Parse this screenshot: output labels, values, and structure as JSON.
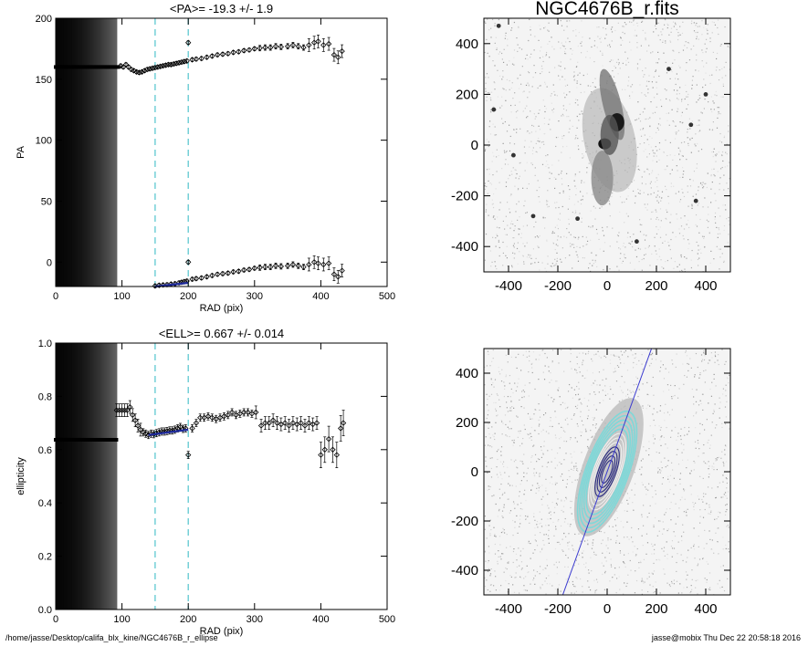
{
  "footer": {
    "path": "/home/jasse/Desktop/califa_blx_kine/NGC4676B_r_ellipse",
    "user_stamp": "jasse@mobix  Thu Dec 22 20:58:18 2016"
  },
  "colors": {
    "guide_lines": "#5ec8d0",
    "model_line": "#1e2a9c",
    "contours_inner": "#2a2a80",
    "contours_outer": "#7fd8d8",
    "pa_line": "#3a3ad0"
  },
  "chart_data": [
    {
      "type": "scatter",
      "title": "<PA>= -19.3 +/-   1.9",
      "xlabel": "RAD (pix)",
      "ylabel": "PA",
      "xlim": [
        0,
        500
      ],
      "ylim": [
        -20,
        200
      ],
      "x_ticks": [
        0,
        100,
        200,
        300,
        400,
        500
      ],
      "y_ticks": [
        0,
        50,
        100,
        150,
        200
      ],
      "grid": false,
      "shaded_region": [
        0,
        92
      ],
      "vertical_lines": [
        150,
        200
      ],
      "constant_start": {
        "x": [
          0,
          95
        ],
        "y": 160
      },
      "upper_points": [
        [
          98,
          161
        ],
        [
          102,
          160
        ],
        [
          106,
          162
        ],
        [
          110,
          160
        ],
        [
          114,
          158
        ],
        [
          118,
          157
        ],
        [
          122,
          156
        ],
        [
          126,
          155.5
        ],
        [
          130,
          156
        ],
        [
          134,
          157
        ],
        [
          138,
          158
        ],
        [
          142,
          158.5
        ],
        [
          146,
          159
        ],
        [
          150,
          159.5
        ],
        [
          154,
          160
        ],
        [
          158,
          160.5
        ],
        [
          162,
          161
        ],
        [
          166,
          161.5
        ],
        [
          170,
          162
        ],
        [
          174,
          162
        ],
        [
          178,
          162.5
        ],
        [
          182,
          163
        ],
        [
          186,
          163.5
        ],
        [
          190,
          164
        ],
        [
          194,
          164.5
        ],
        [
          198,
          165
        ],
        [
          200,
          180
        ],
        [
          206,
          166
        ],
        [
          212,
          166.5
        ],
        [
          220,
          167
        ],
        [
          228,
          168
        ],
        [
          236,
          169
        ],
        [
          244,
          170
        ],
        [
          252,
          170.5
        ],
        [
          260,
          171
        ],
        [
          268,
          172
        ],
        [
          276,
          172.5
        ],
        [
          284,
          173.5
        ],
        [
          292,
          174
        ],
        [
          300,
          175
        ],
        [
          308,
          175.5
        ],
        [
          316,
          176
        ],
        [
          324,
          176
        ],
        [
          332,
          177
        ],
        [
          340,
          176.5
        ],
        [
          350,
          177
        ],
        [
          358,
          178
        ],
        [
          366,
          177
        ],
        [
          374,
          176
        ],
        [
          382,
          178
        ],
        [
          390,
          180
        ],
        [
          396,
          181
        ],
        [
          404,
          178
        ],
        [
          412,
          179
        ],
        [
          420,
          170
        ],
        [
          426,
          168
        ],
        [
          432,
          173
        ]
      ],
      "lower_points": [
        [
          150,
          -19.5
        ],
        [
          156,
          -19
        ],
        [
          162,
          -18.7
        ],
        [
          168,
          -18.5
        ],
        [
          174,
          -18
        ],
        [
          180,
          -17.7
        ],
        [
          186,
          -17
        ],
        [
          190,
          -16.5
        ],
        [
          194,
          -16
        ],
        [
          198,
          -15.5
        ],
        [
          200,
          0
        ],
        [
          206,
          -14
        ],
        [
          212,
          -13.5
        ],
        [
          220,
          -13
        ],
        [
          228,
          -12
        ],
        [
          236,
          -11
        ],
        [
          244,
          -10
        ],
        [
          252,
          -9.5
        ],
        [
          260,
          -9
        ],
        [
          268,
          -8
        ],
        [
          276,
          -7.5
        ],
        [
          284,
          -6.5
        ],
        [
          292,
          -6
        ],
        [
          300,
          -5
        ],
        [
          308,
          -4.5
        ],
        [
          316,
          -4
        ],
        [
          324,
          -4
        ],
        [
          332,
          -3
        ],
        [
          340,
          -3.5
        ],
        [
          350,
          -3
        ],
        [
          358,
          -2
        ],
        [
          366,
          -3
        ],
        [
          374,
          -4
        ],
        [
          382,
          -2
        ],
        [
          390,
          0
        ],
        [
          396,
          -1
        ],
        [
          404,
          -2
        ],
        [
          412,
          -1
        ],
        [
          420,
          -10
        ],
        [
          426,
          -12
        ],
        [
          432,
          -7
        ]
      ],
      "fit_line": {
        "x": [
          150,
          200
        ],
        "y": [
          -20,
          -17
        ]
      }
    },
    {
      "type": "scatter",
      "title": "<ELL>= 0.667 +/-  0.014",
      "xlabel": "RAD (pix)",
      "ylabel": "ellipticity",
      "xlim": [
        0,
        500
      ],
      "ylim": [
        0.0,
        1.0
      ],
      "x_ticks": [
        0,
        100,
        200,
        300,
        400,
        500
      ],
      "y_ticks": [
        0.0,
        0.2,
        0.4,
        0.6,
        0.8,
        1.0
      ],
      "y_tick_labels": [
        "0.0",
        "0.2",
        "0.4",
        "0.6",
        "0.8",
        "1.0"
      ],
      "grid": false,
      "shaded_region": [
        0,
        92
      ],
      "vertical_lines": [
        150,
        200
      ],
      "constant_start": {
        "x": [
          0,
          92
        ],
        "y": 0.637
      },
      "points": [
        [
          92,
          0.748
        ],
        [
          96,
          0.748
        ],
        [
          100,
          0.748
        ],
        [
          104,
          0.748
        ],
        [
          108,
          0.748
        ],
        [
          112,
          0.76
        ],
        [
          116,
          0.73
        ],
        [
          120,
          0.71
        ],
        [
          124,
          0.69
        ],
        [
          128,
          0.675
        ],
        [
          132,
          0.665
        ],
        [
          136,
          0.66
        ],
        [
          140,
          0.655
        ],
        [
          144,
          0.66
        ],
        [
          148,
          0.658
        ],
        [
          152,
          0.662
        ],
        [
          156,
          0.665
        ],
        [
          160,
          0.668
        ],
        [
          164,
          0.668
        ],
        [
          168,
          0.67
        ],
        [
          172,
          0.672
        ],
        [
          176,
          0.672
        ],
        [
          180,
          0.675
        ],
        [
          184,
          0.68
        ],
        [
          188,
          0.685
        ],
        [
          192,
          0.678
        ],
        [
          196,
          0.68
        ],
        [
          200,
          0.58
        ],
        [
          206,
          0.68
        ],
        [
          212,
          0.7
        ],
        [
          218,
          0.72
        ],
        [
          224,
          0.72
        ],
        [
          230,
          0.725
        ],
        [
          236,
          0.72
        ],
        [
          242,
          0.715
        ],
        [
          248,
          0.72
        ],
        [
          254,
          0.725
        ],
        [
          260,
          0.73
        ],
        [
          266,
          0.74
        ],
        [
          272,
          0.73
        ],
        [
          278,
          0.735
        ],
        [
          284,
          0.74
        ],
        [
          290,
          0.74
        ],
        [
          296,
          0.735
        ],
        [
          302,
          0.74
        ],
        [
          310,
          0.69
        ],
        [
          316,
          0.7
        ],
        [
          322,
          0.7
        ],
        [
          328,
          0.71
        ],
        [
          334,
          0.7
        ],
        [
          340,
          0.695
        ],
        [
          346,
          0.7
        ],
        [
          352,
          0.69
        ],
        [
          358,
          0.7
        ],
        [
          364,
          0.695
        ],
        [
          370,
          0.7
        ],
        [
          376,
          0.69
        ],
        [
          382,
          0.7
        ],
        [
          388,
          0.695
        ],
        [
          394,
          0.7
        ],
        [
          400,
          0.58
        ],
        [
          406,
          0.6
        ],
        [
          412,
          0.64
        ],
        [
          418,
          0.6
        ],
        [
          424,
          0.58
        ],
        [
          430,
          0.68
        ],
        [
          434,
          0.7
        ]
      ],
      "fit_line": {
        "x": [
          140,
          200
        ],
        "y": [
          0.655,
          0.675
        ]
      }
    },
    {
      "type": "image",
      "title": "NGC4676B_r.fits",
      "xlim": [
        -500,
        500
      ],
      "ylim": [
        -500,
        500
      ],
      "x_ticks": [
        -400,
        -200,
        0,
        200,
        400
      ],
      "y_ticks": [
        -400,
        -200,
        0,
        200,
        400
      ]
    },
    {
      "type": "image",
      "title": "",
      "xlim": [
        -500,
        500
      ],
      "ylim": [
        -500,
        500
      ],
      "x_ticks": [
        -400,
        -200,
        0,
        200,
        400
      ],
      "y_ticks": [
        -400,
        -200,
        0,
        200,
        400
      ],
      "ellipse_contours": {
        "count": 12,
        "pa_deg": -19.3,
        "ellipticity": 0.667
      }
    }
  ]
}
